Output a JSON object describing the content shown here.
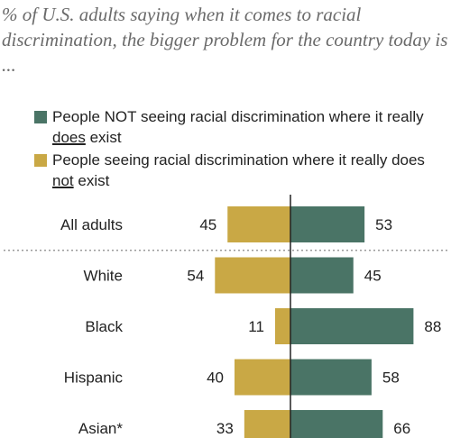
{
  "subtitle": "% of U.S. adults saying when it comes to racial discrimination, the bigger problem for the country today is ...",
  "legend": [
    {
      "parts": [
        [
          "People NOT seeing racial discrimination where it really ",
          false
        ],
        [
          "does",
          true
        ],
        [
          " exist",
          false
        ]
      ],
      "color": "#4a7466"
    },
    {
      "parts": [
        [
          "People seeing racial discrimination where it really does ",
          false
        ],
        [
          "not",
          true
        ],
        [
          " exist",
          false
        ]
      ],
      "color": "#c9a845"
    }
  ],
  "chart_data": {
    "type": "bar",
    "categories": [
      "All adults",
      "White",
      "Black",
      "Hispanic",
      "Asian*"
    ],
    "series": [
      {
        "values": [
          53,
          45,
          88,
          58,
          66
        ],
        "color": "#4a7466",
        "direction": "right"
      },
      {
        "values": [
          45,
          54,
          11,
          40,
          33
        ],
        "color": "#c9a845",
        "direction": "left"
      }
    ],
    "divider_after": "All adults"
  }
}
